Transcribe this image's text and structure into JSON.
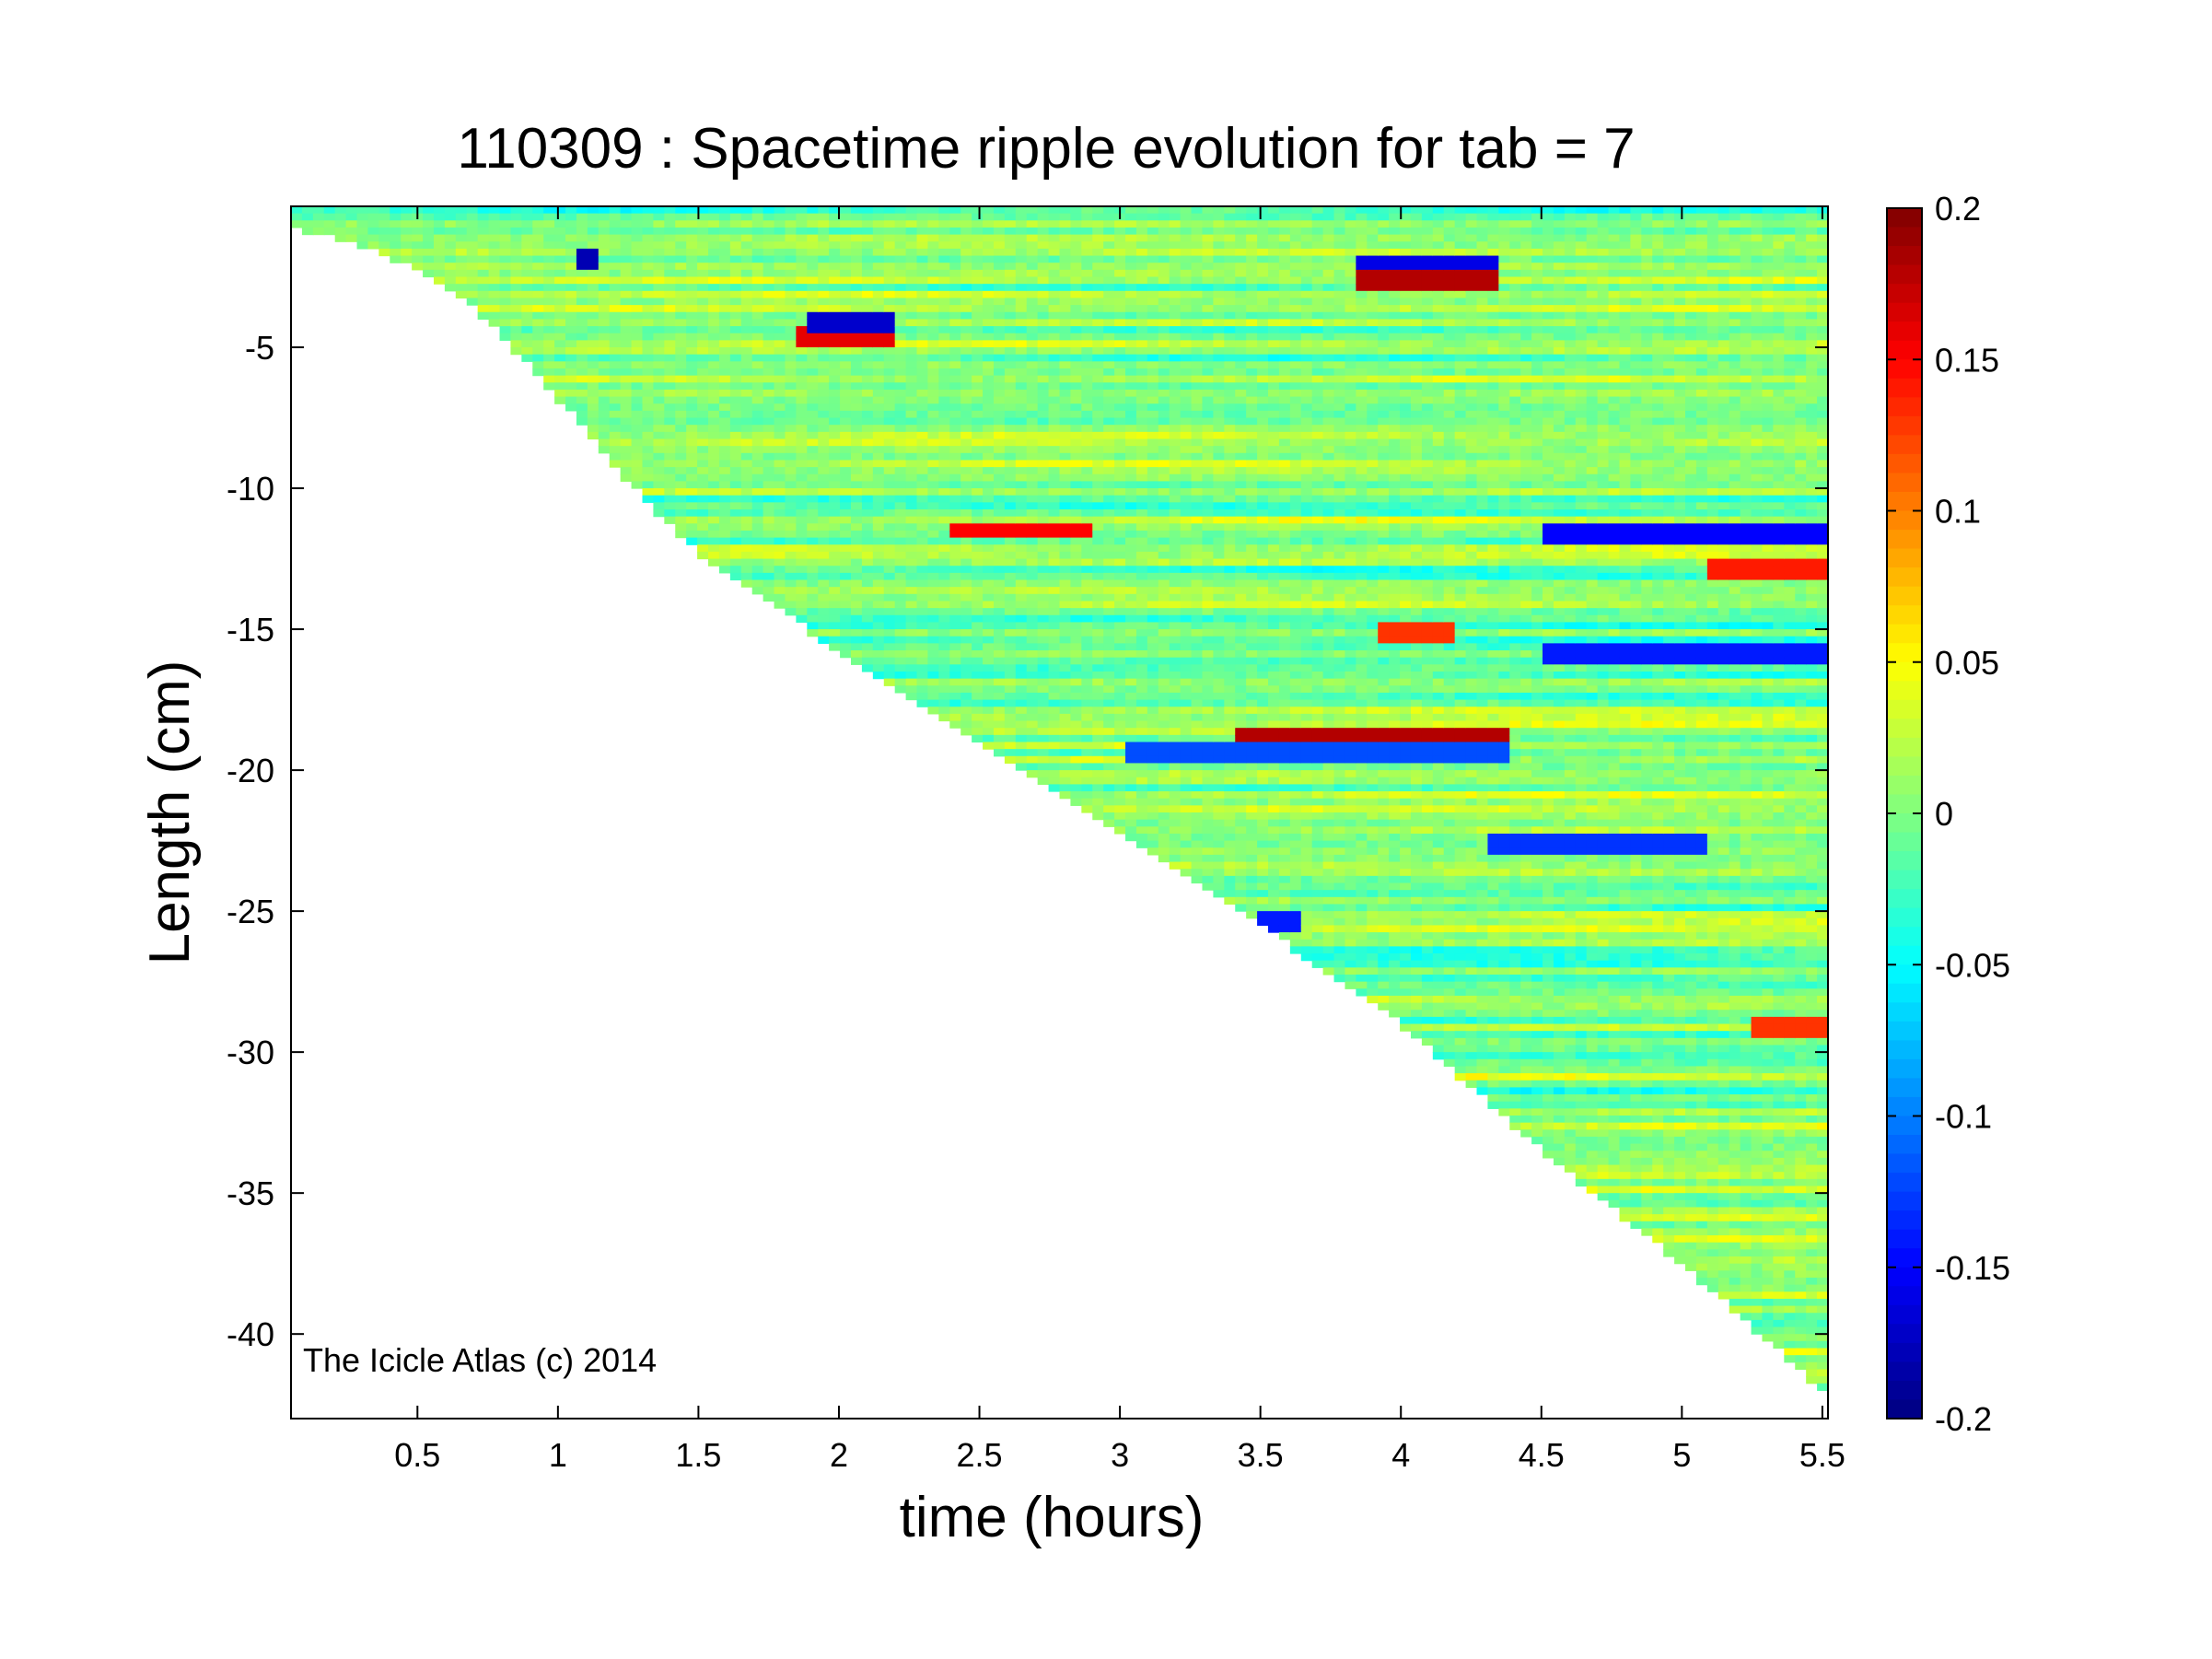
{
  "chart_data": {
    "type": "heatmap",
    "title": "110309 : Spacetime ripple evolution for tab = 7",
    "xlabel": "time (hours)",
    "ylabel": "Length (cm)",
    "xlim": [
      0.05,
      5.52
    ],
    "ylim": [
      -43.0,
      0.0
    ],
    "xticks": [
      0.5,
      1,
      1.5,
      2,
      2.5,
      3,
      3.5,
      4,
      4.5,
      5,
      5.5
    ],
    "xtick_labels": [
      "0.5",
      "1",
      "1.5",
      "2",
      "2.5",
      "3",
      "3.5",
      "4",
      "4.5",
      "5",
      "5.5"
    ],
    "yticks": [
      -5,
      -10,
      -15,
      -20,
      -25,
      -30,
      -35,
      -40
    ],
    "ytick_labels": [
      "-5",
      "-10",
      "-15",
      "-20",
      "-25",
      "-30",
      "-35",
      "-40"
    ],
    "colormap": "jet",
    "clim": [
      -0.2,
      0.2
    ],
    "colorbar_ticks": [
      0.2,
      0.15,
      0.1,
      0.05,
      0,
      -0.05,
      -0.1,
      -0.15,
      -0.2
    ],
    "colorbar_tick_labels": [
      "0.2",
      "0.15",
      "0.1",
      "0.05",
      "0",
      "-0.05",
      "-0.1",
      "-0.15",
      "-0.2"
    ],
    "colorbar_position": "right",
    "grid": false,
    "growth_front": [
      {
        "t": 0.05,
        "length": -0.8
      },
      {
        "t": 0.25,
        "length": -1.2
      },
      {
        "t": 0.5,
        "length": -2.2
      },
      {
        "t": 0.75,
        "length": -4.0
      },
      {
        "t": 1.0,
        "length": -6.8
      },
      {
        "t": 1.25,
        "length": -9.8
      },
      {
        "t": 1.5,
        "length": -12.3
      },
      {
        "t": 2.0,
        "length": -15.8
      },
      {
        "t": 2.5,
        "length": -19.0
      },
      {
        "t": 3.0,
        "length": -22.2
      },
      {
        "t": 3.5,
        "length": -25.5
      },
      {
        "t": 4.0,
        "length": -29.0
      },
      {
        "t": 4.5,
        "length": -33.5
      },
      {
        "t": 5.0,
        "length": -37.5
      },
      {
        "t": 5.5,
        "length": -42.0
      }
    ],
    "features": [
      {
        "t_start": 1.85,
        "t_end": 2.2,
        "length": -4.6,
        "value": 0.16
      },
      {
        "t_start": 1.9,
        "t_end": 2.2,
        "length": -4.2,
        "value": -0.17
      },
      {
        "t_start": 3.85,
        "t_end": 4.35,
        "length": -2.6,
        "value": 0.18
      },
      {
        "t_start": 3.85,
        "t_end": 4.35,
        "length": -2.0,
        "value": -0.16
      },
      {
        "t_start": 3.4,
        "t_end": 4.4,
        "length": -18.8,
        "value": 0.18
      },
      {
        "t_start": 3.0,
        "t_end": 4.4,
        "length": -19.3,
        "value": -0.12
      },
      {
        "t_start": 2.4,
        "t_end": 2.9,
        "length": -11.5,
        "value": 0.15
      },
      {
        "t_start": 4.5,
        "t_end": 5.52,
        "length": -11.6,
        "value": -0.15
      },
      {
        "t_start": 5.1,
        "t_end": 5.52,
        "length": -12.8,
        "value": 0.14
      },
      {
        "t_start": 4.5,
        "t_end": 5.52,
        "length": -15.9,
        "value": -0.14
      },
      {
        "t_start": 4.3,
        "t_end": 5.1,
        "length": -22.6,
        "value": -0.13
      },
      {
        "t_start": 3.5,
        "t_end": 3.65,
        "length": -25.3,
        "value": -0.14
      },
      {
        "t_start": 5.25,
        "t_end": 5.52,
        "length": -29.1,
        "value": 0.13
      },
      {
        "t_start": 1.05,
        "t_end": 1.15,
        "length": -1.9,
        "value": -0.18
      },
      {
        "t_start": 3.9,
        "t_end": 4.2,
        "length": -15.2,
        "value": 0.13
      }
    ]
  },
  "annotation": {
    "text": "The Icicle Atlas (c) 2014"
  }
}
